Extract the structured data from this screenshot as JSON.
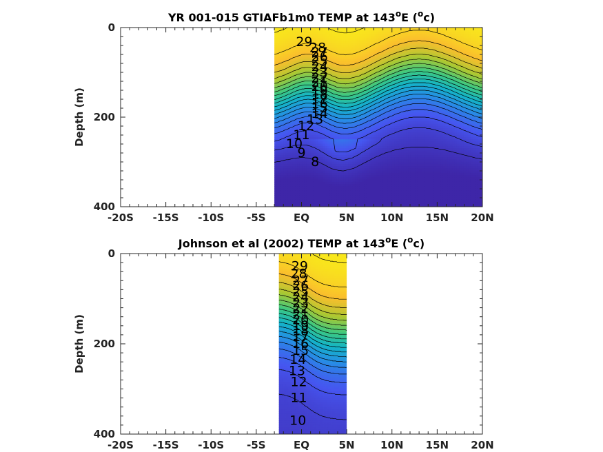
{
  "chart_data": [
    {
      "type": "heatmap",
      "title": "YR 001-015 GTIAFb1m0 TEMP at 143",
      "title_sup": "o",
      "title_end": "E (",
      "title_unit_sup": "o",
      "title_unit": "c)",
      "ylabel": "Depth (m)",
      "xlabel": "",
      "x_range_lat": [
        -20,
        20
      ],
      "y_range_depth": [
        0,
        400
      ],
      "y_reversed": true,
      "x_ticks": [
        "-20S",
        "-15S",
        "-10S",
        "-5S",
        "EQ",
        "5N",
        "10N",
        "15N",
        "20N"
      ],
      "y_ticks": [
        "0",
        "200",
        "400"
      ],
      "data_extent_lat": [
        -3,
        20
      ],
      "contour_levels": [
        8,
        9,
        10,
        11,
        12,
        13,
        14,
        15,
        16,
        17,
        18,
        19,
        20,
        21,
        22,
        23,
        24,
        25,
        26,
        27,
        28,
        29
      ],
      "contour_labels": [
        "29",
        "28",
        "27",
        "26",
        "25",
        "24",
        "23",
        "22",
        "21",
        "20",
        "19",
        "18",
        "17",
        "16",
        "15",
        "14",
        "13",
        "12",
        "11",
        "10",
        "9",
        "8"
      ],
      "colormap": "parula",
      "color_range": [
        8,
        30
      ]
    },
    {
      "type": "heatmap",
      "title": "Johnson et al (2002) TEMP at 143",
      "title_sup": "o",
      "title_end": "E (",
      "title_unit_sup": "o",
      "title_unit": "c)",
      "ylabel": "Depth (m)",
      "xlabel": "",
      "x_range_lat": [
        -20,
        20
      ],
      "y_range_depth": [
        0,
        400
      ],
      "y_reversed": true,
      "x_ticks": [
        "-20S",
        "-15S",
        "-10S",
        "-5S",
        "EQ",
        "5N",
        "10N",
        "15N",
        "20N"
      ],
      "y_ticks": [
        "0",
        "200",
        "400"
      ],
      "data_extent_lat": [
        -2.5,
        5
      ],
      "contour_levels": [
        10,
        11,
        12,
        13,
        14,
        15,
        16,
        17,
        18,
        19,
        20,
        21,
        22,
        23,
        24,
        25,
        26,
        27,
        28,
        29
      ],
      "contour_labels": [
        "29",
        "28",
        "27",
        "26",
        "25",
        "24",
        "23",
        "22",
        "21",
        "20",
        "19",
        "18",
        "17",
        "16",
        "15",
        "14",
        "13",
        "12",
        "11",
        "10"
      ],
      "colormap": "parula",
      "color_range": [
        8,
        30
      ]
    }
  ]
}
